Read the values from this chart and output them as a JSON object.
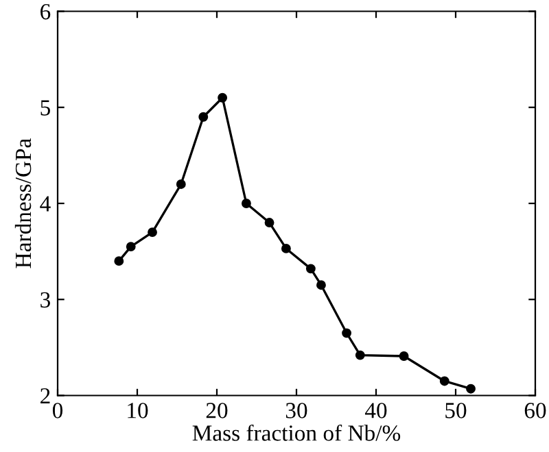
{
  "chart_data": {
    "type": "line",
    "xlabel": "Mass fraction of Nb/%",
    "ylabel": "Hardness/GPa",
    "x": [
      7.7,
      9.2,
      11.9,
      15.5,
      18.3,
      20.7,
      23.7,
      26.6,
      28.7,
      31.8,
      33.1,
      36.3,
      38.0,
      43.5,
      48.6,
      51.9
    ],
    "series": [
      {
        "color": "#000000",
        "values": [
          3.4,
          3.55,
          3.7,
          4.2,
          4.9,
          5.1,
          4.0,
          3.8,
          3.53,
          3.32,
          3.15,
          2.65,
          2.42,
          2.41,
          2.15,
          2.07
        ]
      }
    ],
    "xlim": [
      0,
      60
    ],
    "xticks": [
      0,
      10,
      20,
      30,
      40,
      50,
      60
    ],
    "ylim": [
      2,
      6
    ],
    "yticks": [
      2,
      3,
      4,
      5,
      6
    ],
    "marker": "circle",
    "line_style": "solid",
    "grid": false,
    "legend": false
  }
}
